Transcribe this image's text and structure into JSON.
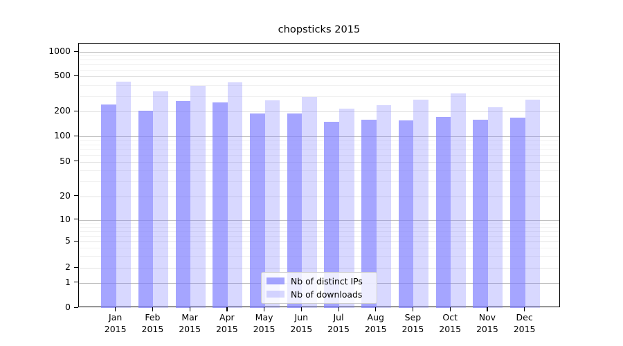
{
  "chart_data": {
    "type": "bar",
    "title": "chopsticks 2015",
    "categories": [
      "Jan 2015",
      "Feb 2015",
      "Mar 2015",
      "Apr 2015",
      "May 2015",
      "Jun 2015",
      "Jul 2015",
      "Aug 2015",
      "Sep 2015",
      "Oct 2015",
      "Nov 2015",
      "Dec 2015"
    ],
    "series": [
      {
        "name": "Nb of distinct IPs",
        "color": "#7f7fff",
        "alpha": 0.7,
        "values": [
          240,
          202,
          264,
          252,
          188,
          190,
          150,
          160,
          155,
          170,
          160,
          167
        ]
      },
      {
        "name": "Nb of downloads",
        "color": "#7f7fff",
        "alpha": 0.3,
        "values": [
          436,
          337,
          393,
          430,
          267,
          292,
          215,
          235,
          270,
          318,
          223,
          270
        ]
      }
    ],
    "xlabel": "",
    "ylabel": "",
    "yscale": "log-with-zero-baseline",
    "yticks": [
      0,
      1,
      2,
      5,
      10,
      20,
      50,
      100,
      200,
      500,
      1000
    ],
    "ylim": [
      0,
      1250
    ],
    "grid": true,
    "legend_position": "lower center inside plot"
  },
  "colors": {
    "bar_base": "#7f7fff",
    "grid_major": "#bdbdbd",
    "grid_mid": "#e1e1e1",
    "grid_minor": "#f1f1f1",
    "spine": "#000000",
    "legend_border": "#cccccc"
  }
}
